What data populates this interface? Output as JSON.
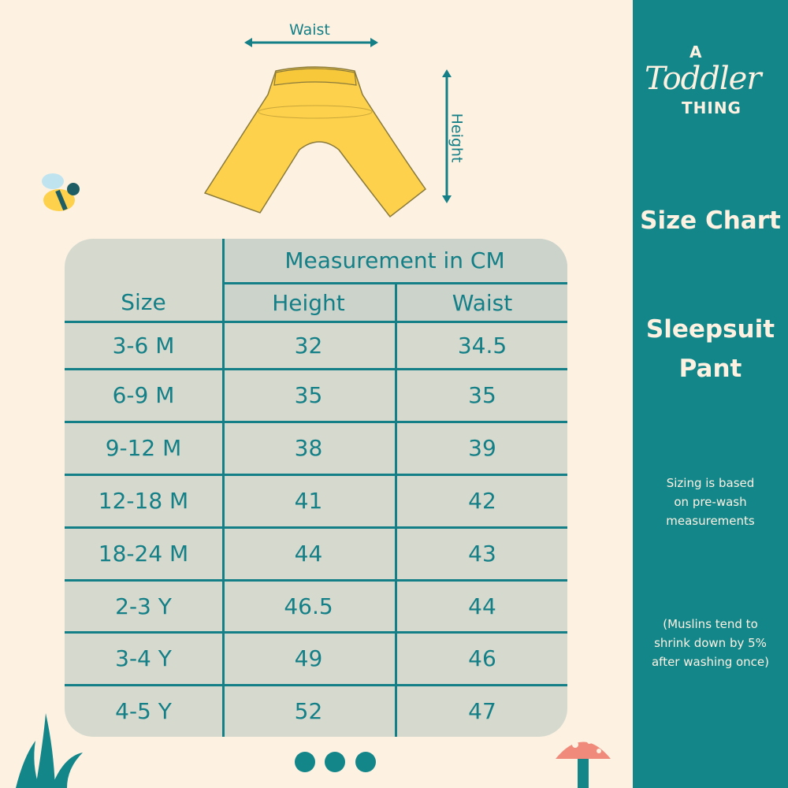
{
  "brand": {
    "logo_text": "A Toddler Thing"
  },
  "side": {
    "title": "Size Chart",
    "product_line1": "Sleepsuit",
    "product_line2": "Pant",
    "note1": [
      "Sizing is based",
      "on pre-wash",
      "measurements"
    ],
    "note2": [
      "(Muslins tend to",
      "shrink down by 5%",
      "after washing once)"
    ]
  },
  "illustration": {
    "waist_label": "Waist",
    "height_label": "Height"
  },
  "table": {
    "size_header": "Size",
    "group_header": "Measurement in CM",
    "columns": [
      "Height",
      "Waist"
    ],
    "rows": [
      [
        "3-6 M",
        "32",
        "34.5"
      ],
      [
        "6-9 M",
        "35",
        "35"
      ],
      [
        "9-12 M",
        "38",
        "39"
      ],
      [
        "12-18 M",
        "41",
        "42"
      ],
      [
        "18-24 M",
        "44",
        "43"
      ],
      [
        "2-3 Y",
        "46.5",
        "44"
      ],
      [
        "3-4 Y",
        "49",
        "46"
      ],
      [
        "4-5 Y",
        "52",
        "47"
      ]
    ]
  },
  "colors": {
    "teal": "#13868a",
    "background": "#fdf1e2",
    "table": "#d6dace",
    "pant": "#fdd14b"
  },
  "pagination": {
    "dots": 3
  }
}
